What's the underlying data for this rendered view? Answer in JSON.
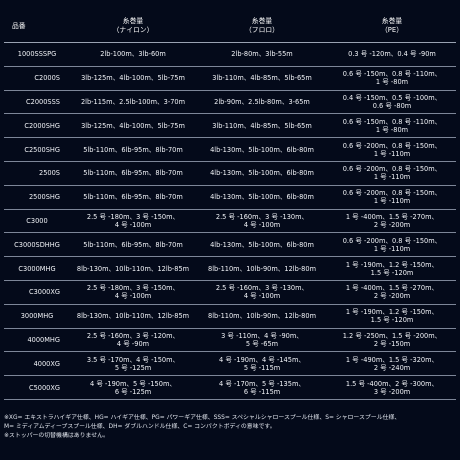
{
  "header": {
    "model": "品番",
    "nylon_main": "糸巻量",
    "nylon_sub": "（ナイロン）",
    "fluoro_main": "糸巻量",
    "fluoro_sub": "（フロロ）",
    "pe_main": "糸巻量",
    "pe_sub": "（PE）"
  },
  "rows": [
    {
      "model": "1000SSSPG",
      "nylon": [
        "2lb-100m、3lb-60m"
      ],
      "fluoro": [
        "2lb-80m、3lb-55m"
      ],
      "pe": [
        "0.3 号 -120m、0.4 号 -90m"
      ]
    },
    {
      "model": "C2000S",
      "nylon": [
        "3lb-125m、4lb-100m、5lb-75m"
      ],
      "fluoro": [
        "3lb-110m、4lb-85m、5lb-65m"
      ],
      "pe": [
        "0.6 号 -150m、0.8 号 -110m、",
        "1 号 -80m"
      ]
    },
    {
      "model": "C2000SSS",
      "nylon": [
        "2lb-115m、2.5lb-100m、3-70m"
      ],
      "fluoro": [
        "2lb-90m、2.5lb-80m、3-65m"
      ],
      "pe": [
        "0.4 号 -150m、0.5 号 -100m、",
        "0.6 号 -80m"
      ]
    },
    {
      "model": "C2000SHG",
      "nylon": [
        "3lb-125m、4lb-100m、5lb-75m"
      ],
      "fluoro": [
        "3lb-110m、4lb-85m、5lb-65m"
      ],
      "pe": [
        "0.6 号 -150m、0.8 号 -110m、",
        "1 号 -80m"
      ]
    },
    {
      "model": "C2500SHG",
      "nylon": [
        "5lb-110m、6lb-95m、8lb-70m"
      ],
      "fluoro": [
        "4lb-130m、5lb-100m、6lb-80m"
      ],
      "pe": [
        "0.6 号 -200m、0.8 号 -150m、",
        "1 号 -110m"
      ]
    },
    {
      "model": "2500S",
      "nylon": [
        "5lb-110m、6lb-95m、8lb-70m"
      ],
      "fluoro": [
        "4lb-130m、5lb-100m、6lb-80m"
      ],
      "pe": [
        "0.6 号 -200m、0.8 号 -150m、",
        "1 号 -110m"
      ]
    },
    {
      "model": "2500SHG",
      "nylon": [
        "5lb-110m、6lb-95m、8lb-70m"
      ],
      "fluoro": [
        "4lb-130m、5lb-100m、6lb-80m"
      ],
      "pe": [
        "0.6 号 -200m、0.8 号 -150m、",
        "1 号 -110m"
      ]
    },
    {
      "model": "C3000",
      "nylon": [
        "2.5 号 -180m、3 号 -150m、",
        "4 号 -100m"
      ],
      "fluoro": [
        "2.5 号 -160m、3 号 -130m、",
        "4 号 -100m"
      ],
      "pe": [
        "1 号 -400m、1.5 号 -270m、",
        "2 号 -200m"
      ]
    },
    {
      "model": "C3000SDHHG",
      "nylon": [
        "5lb-110m、6lb-95m、8lb-70m"
      ],
      "fluoro": [
        "4lb-130m、5lb-100m、6lb-80m"
      ],
      "pe": [
        "0.6 号 -200m、0.8 号 -150m、",
        "1 号 -110m"
      ]
    },
    {
      "model": "C3000MHG",
      "nylon": [
        "8lb-130m、10lb-110m、12lb-85m"
      ],
      "fluoro": [
        "8lb-110m、10lb-90m、12lb-80m"
      ],
      "pe": [
        "1 号 -190m、1.2 号 -150m、",
        "1.5 号 -120m"
      ]
    },
    {
      "model": "C3000XG",
      "nylon": [
        "2.5 号 -180m、3 号 -150m、",
        "4 号 -100m"
      ],
      "fluoro": [
        "2.5 号 -160m、3 号 -130m、",
        "4 号 -100m"
      ],
      "pe": [
        "1 号 -400m、1.5 号 -270m、",
        "2 号 -200m"
      ]
    },
    {
      "model": "3000MHG",
      "nylon": [
        "8lb-130m、10lb-110m、12lb-85m"
      ],
      "fluoro": [
        "8lb-110m、10lb-90m、12lb-80m"
      ],
      "pe": [
        "1 号 -190m、1.2 号 -150m、",
        "1.5 号 -120m"
      ]
    },
    {
      "model": "4000MHG",
      "nylon": [
        "2.5 号 -160m、3 号 -120m、",
        "4 号 -90m"
      ],
      "fluoro": [
        "3 号 -110m、4 号 -90m、",
        "5 号 -65m"
      ],
      "pe": [
        "1.2 号 -250m、1.5 号 -200m、",
        "2 号 -150m"
      ]
    },
    {
      "model": "4000XG",
      "nylon": [
        "3.5 号 -170m、4 号 -150m、",
        "5 号 -125m"
      ],
      "fluoro": [
        "4 号 -190m、4 号 -145m、",
        "5 号 -115m"
      ],
      "pe": [
        "1 号 -490m、1.5 号 -320m、",
        "2 号 -240m"
      ]
    },
    {
      "model": "C5000XG",
      "nylon": [
        "4 号 -190m、5 号 -150m、",
        "6 号 -125m"
      ],
      "fluoro": [
        "4 号 -170m、5 号 -135m、",
        "6 号 -115m"
      ],
      "pe": [
        "1.5 号 -400m、2 号 -300m、",
        "3 号 -200m"
      ]
    }
  ],
  "notes": [
    "※XG= エキストラハイギア仕様、HG= ハイギア仕様、PG= パワーギア仕様、SSS= スペシャルシャロースプール仕様、S= シャロースプール仕様、",
    "M= ミディアムディープスプール仕様、DH= ダブルハンドル仕様、C= コンパクトボディの意味です。",
    "※ストッパーの切替機構はありません。"
  ]
}
